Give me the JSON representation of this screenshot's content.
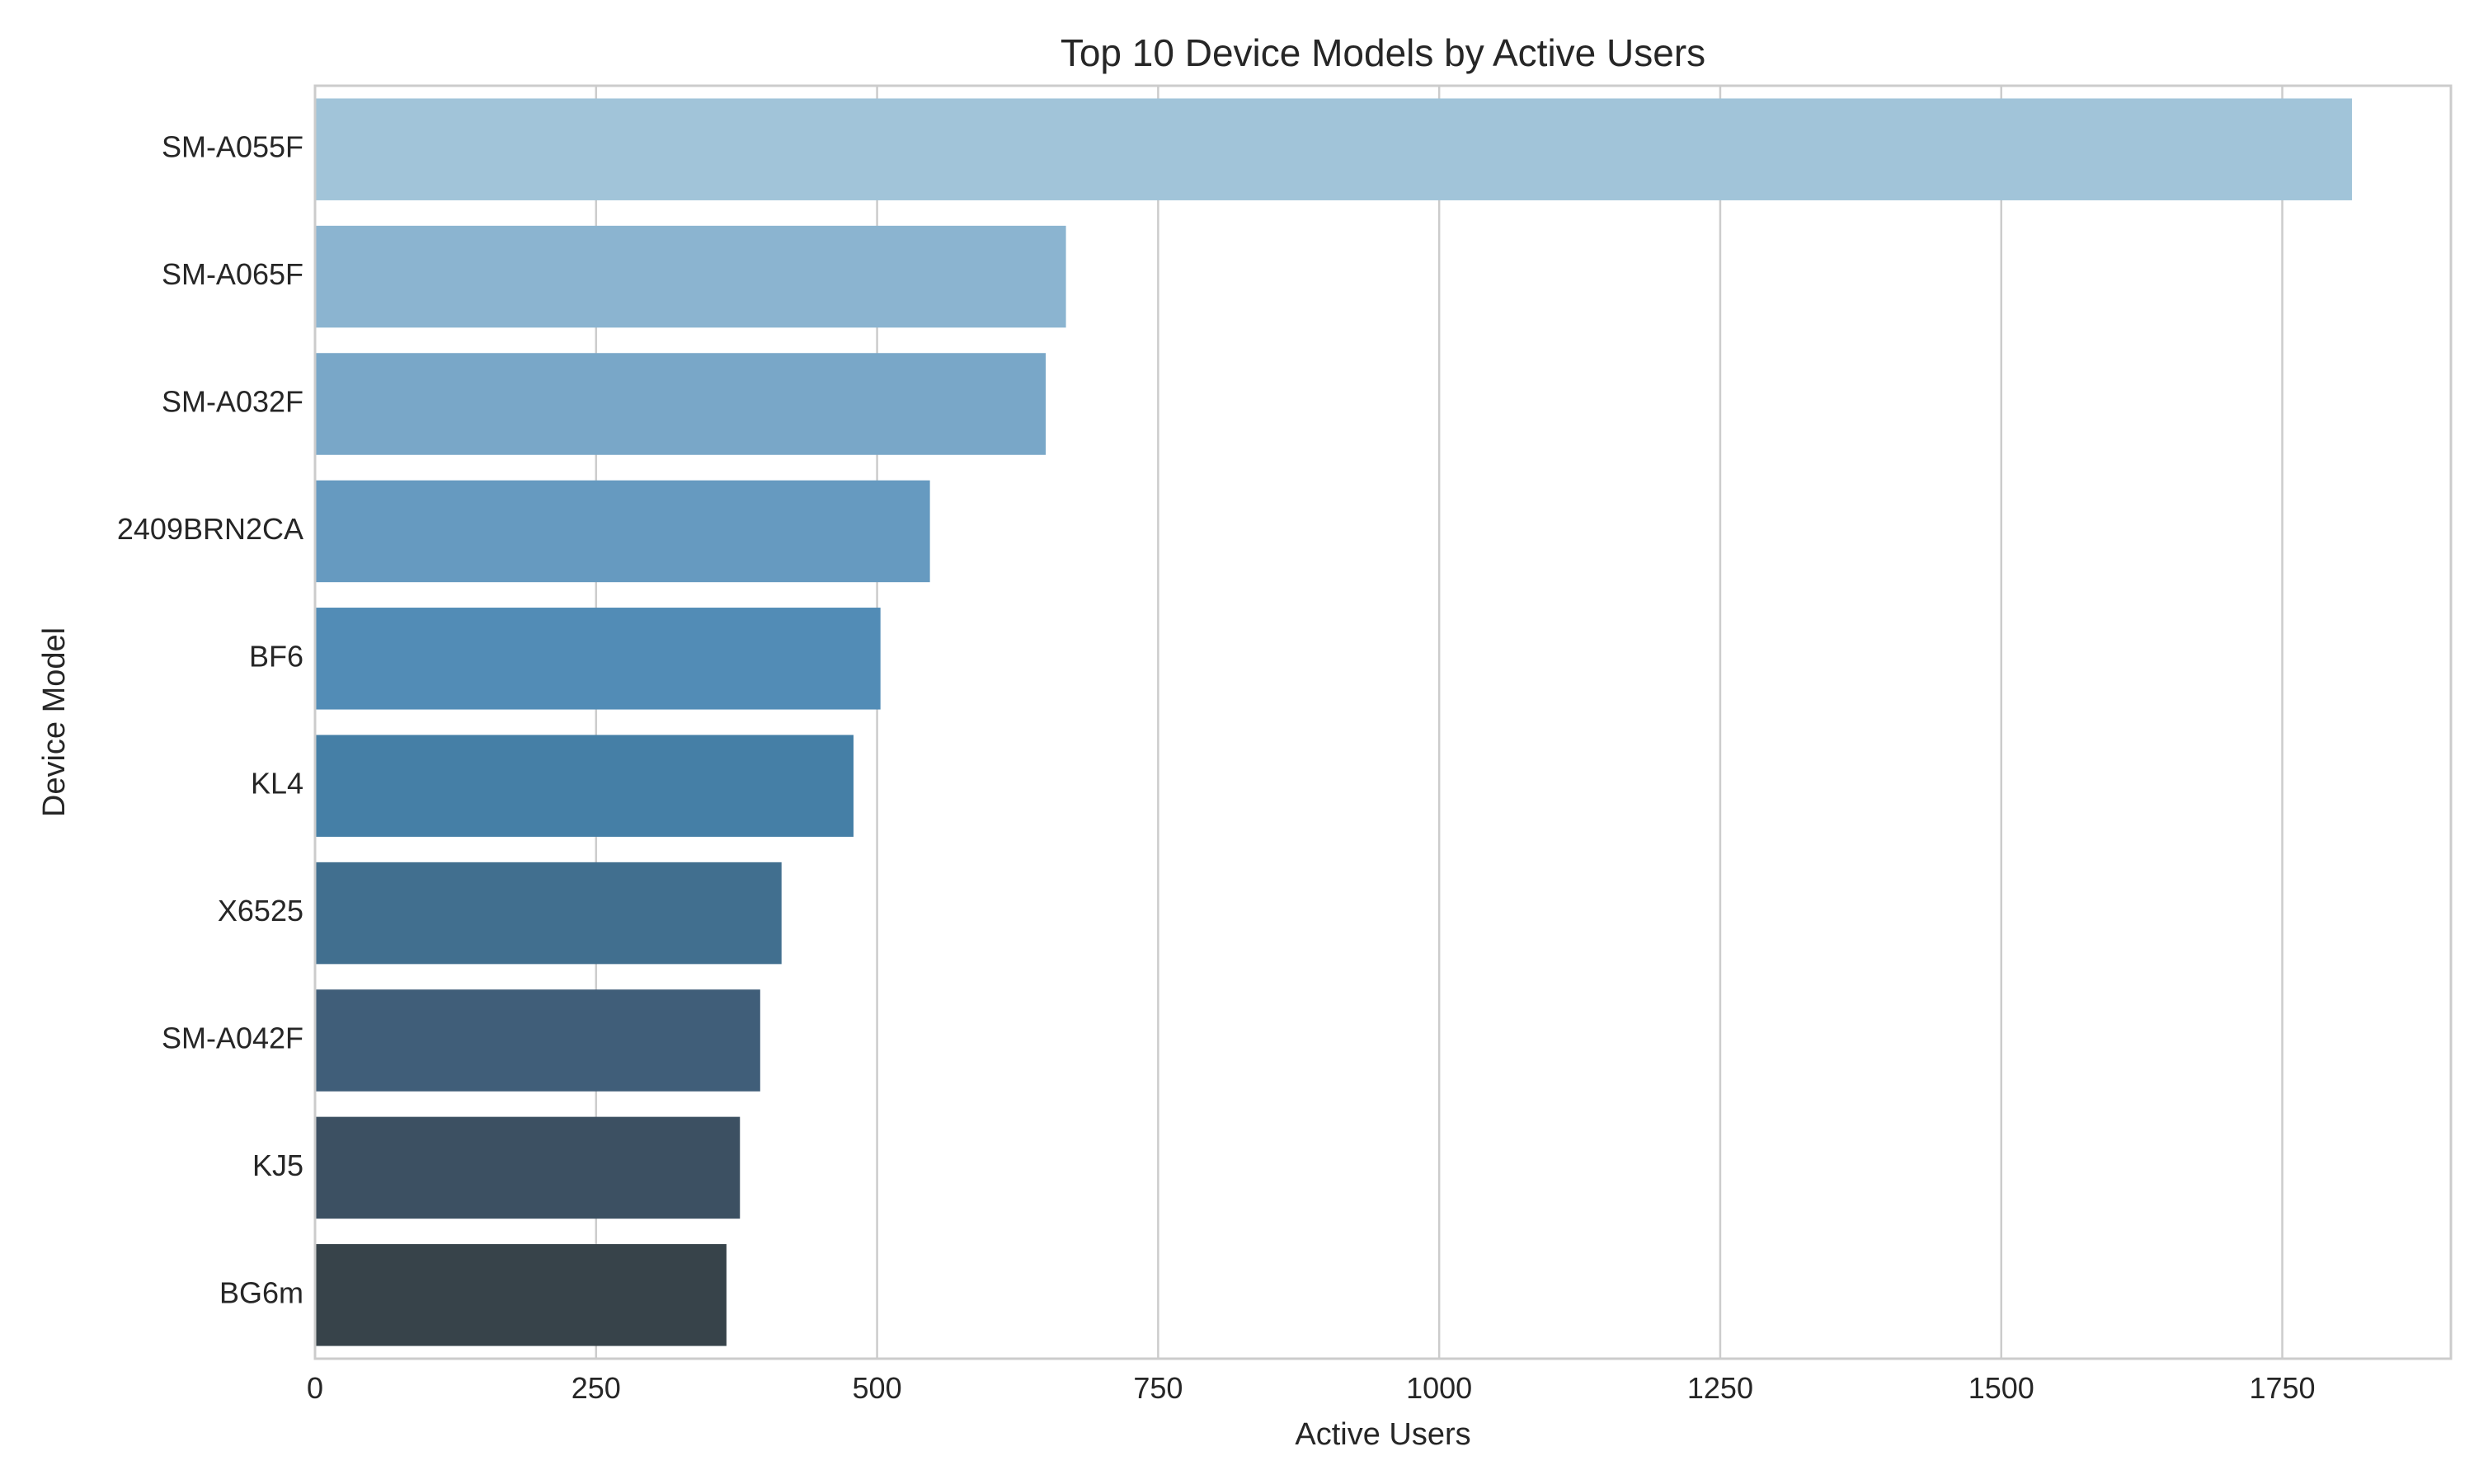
{
  "chart_data": {
    "type": "bar",
    "orientation": "horizontal",
    "title": "Top 10 Device Models by Active Users",
    "xlabel": "Active Users",
    "ylabel": "Device Model",
    "xlim": [
      0,
      1900
    ],
    "xticks": [
      0,
      250,
      500,
      750,
      1000,
      1250,
      1500,
      1750
    ],
    "grid": true,
    "categories": [
      "SM-A055F",
      "SM-A065F",
      "SM-A032F",
      "2409BRN2CA",
      "BF6",
      "KL4",
      "X6525",
      "SM-A042F",
      "KJ5",
      "BG6m"
    ],
    "values": [
      1812,
      668,
      650,
      547,
      503,
      479,
      415,
      396,
      378,
      366
    ],
    "colors": [
      "#a1c4d9",
      "#8bb4d0",
      "#79a7c8",
      "#669ac0",
      "#528cb6",
      "#457fa6",
      "#416f8f",
      "#405e79",
      "#3c5062",
      "#37434a"
    ]
  }
}
